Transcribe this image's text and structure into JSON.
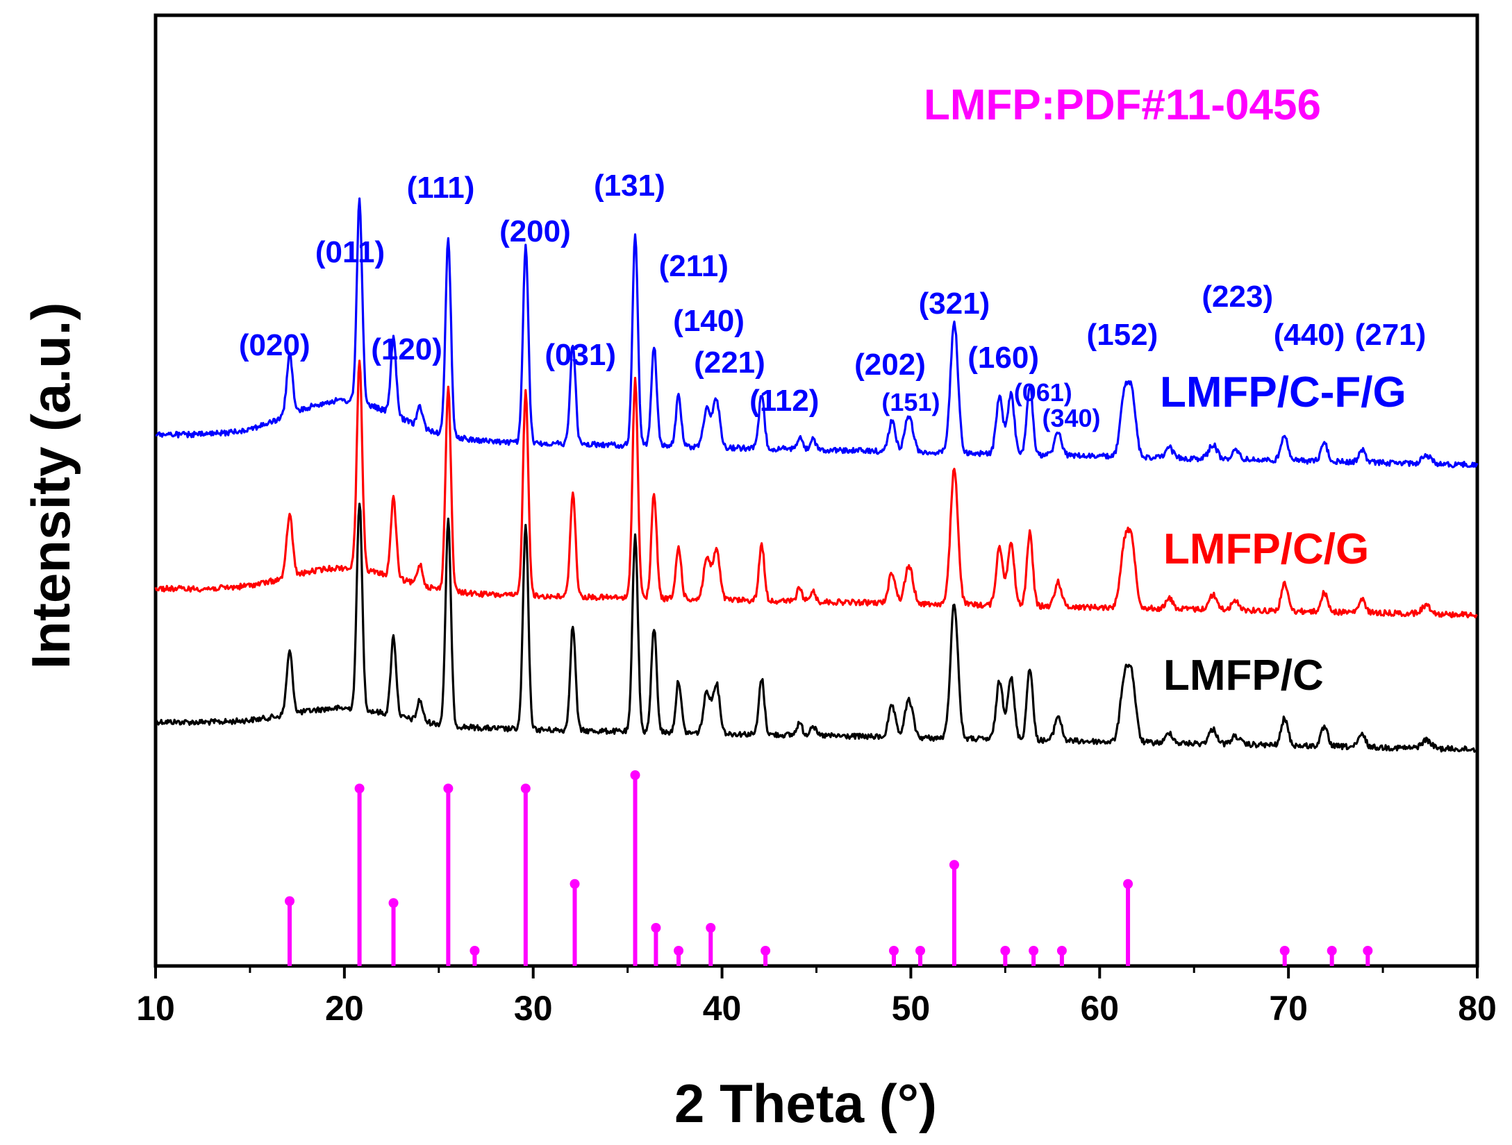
{
  "chart_data": {
    "type": "line",
    "title": "",
    "xlabel": "2 Theta (°)",
    "ylabel": "Intensity (a.u.)",
    "xlim": [
      10,
      80
    ],
    "xticks": [
      "10",
      "20",
      "30",
      "40",
      "50",
      "60",
      "70",
      "80"
    ],
    "yticks": [],
    "reference": {
      "label": "LMFP:PDF#11-0456",
      "color": "#ff00ff",
      "peaks": [
        {
          "x": 17.1,
          "h": 0.34
        },
        {
          "x": 20.8,
          "h": 0.93
        },
        {
          "x": 22.6,
          "h": 0.33
        },
        {
          "x": 26.9,
          "h": 0.08
        },
        {
          "x": 25.5,
          "h": 0.93
        },
        {
          "x": 29.6,
          "h": 0.93
        },
        {
          "x": 32.2,
          "h": 0.43
        },
        {
          "x": 35.4,
          "h": 1.0
        },
        {
          "x": 36.5,
          "h": 0.2
        },
        {
          "x": 37.7,
          "h": 0.08
        },
        {
          "x": 39.4,
          "h": 0.2
        },
        {
          "x": 42.3,
          "h": 0.08
        },
        {
          "x": 49.1,
          "h": 0.08
        },
        {
          "x": 50.5,
          "h": 0.08
        },
        {
          "x": 52.3,
          "h": 0.53
        },
        {
          "x": 55.0,
          "h": 0.08
        },
        {
          "x": 56.5,
          "h": 0.08
        },
        {
          "x": 58.0,
          "h": 0.08
        },
        {
          "x": 61.5,
          "h": 0.43
        },
        {
          "x": 69.8,
          "h": 0.08
        },
        {
          "x": 72.3,
          "h": 0.08
        },
        {
          "x": 74.2,
          "h": 0.08
        }
      ]
    },
    "series": [
      {
        "name": "LMFP/C",
        "color": "#000000"
      },
      {
        "name": "LMFP/C/G",
        "color": "#ff0000"
      },
      {
        "name": "LMFP/C-F/G",
        "color": "#0000ff"
      }
    ],
    "pattern_peaks": [
      {
        "x": 17.1,
        "h": 0.3,
        "w": 0.22
      },
      {
        "x": 20.8,
        "h": 1.0,
        "w": 0.2
      },
      {
        "x": 22.6,
        "h": 0.38,
        "w": 0.2
      },
      {
        "x": 24.0,
        "h": 0.1,
        "w": 0.2
      },
      {
        "x": 25.5,
        "h": 0.98,
        "w": 0.2
      },
      {
        "x": 29.6,
        "h": 0.98,
        "w": 0.2
      },
      {
        "x": 32.1,
        "h": 0.5,
        "w": 0.2
      },
      {
        "x": 35.4,
        "h": 1.05,
        "w": 0.2
      },
      {
        "x": 36.4,
        "h": 0.5,
        "w": 0.2
      },
      {
        "x": 37.7,
        "h": 0.25,
        "w": 0.2
      },
      {
        "x": 39.2,
        "h": 0.2,
        "w": 0.25
      },
      {
        "x": 39.7,
        "h": 0.24,
        "w": 0.25
      },
      {
        "x": 42.1,
        "h": 0.27,
        "w": 0.2
      },
      {
        "x": 44.1,
        "h": 0.06,
        "w": 0.2
      },
      {
        "x": 44.8,
        "h": 0.05,
        "w": 0.2
      },
      {
        "x": 49.0,
        "h": 0.15,
        "w": 0.25
      },
      {
        "x": 49.9,
        "h": 0.18,
        "w": 0.3
      },
      {
        "x": 52.3,
        "h": 0.65,
        "w": 0.28
      },
      {
        "x": 54.7,
        "h": 0.28,
        "w": 0.25
      },
      {
        "x": 55.3,
        "h": 0.3,
        "w": 0.25
      },
      {
        "x": 56.3,
        "h": 0.35,
        "w": 0.22
      },
      {
        "x": 57.8,
        "h": 0.12,
        "w": 0.25
      },
      {
        "x": 61.3,
        "h": 0.28,
        "w": 0.3
      },
      {
        "x": 61.7,
        "h": 0.3,
        "w": 0.3
      },
      {
        "x": 63.7,
        "h": 0.05,
        "w": 0.25
      },
      {
        "x": 66.0,
        "h": 0.07,
        "w": 0.3
      },
      {
        "x": 67.2,
        "h": 0.04,
        "w": 0.3
      },
      {
        "x": 69.8,
        "h": 0.13,
        "w": 0.25
      },
      {
        "x": 71.9,
        "h": 0.09,
        "w": 0.25
      },
      {
        "x": 73.9,
        "h": 0.06,
        "w": 0.25
      },
      {
        "x": 77.3,
        "h": 0.04,
        "w": 0.35
      }
    ],
    "miller_indices": [
      {
        "text": "(020)",
        "x": 16.3
      },
      {
        "text": "(011)",
        "x": 20.3
      },
      {
        "text": "(120)",
        "x": 23.3
      },
      {
        "text": "(111)",
        "x": 25.1
      },
      {
        "text": "(200)",
        "x": 30.1
      },
      {
        "text": "(031)",
        "x": 32.5
      },
      {
        "text": "(131)",
        "x": 35.1
      },
      {
        "text": "(211)",
        "x": 38.5
      },
      {
        "text": "(140)",
        "x": 39.3
      },
      {
        "text": "(221)",
        "x": 40.4
      },
      {
        "text": "(112)",
        "x": 43.3
      },
      {
        "text": "(202)",
        "x": 48.9
      },
      {
        "text": "(151)",
        "x": 50.0
      },
      {
        "text": "(321)",
        "x": 52.3
      },
      {
        "text": "(160)",
        "x": 54.9
      },
      {
        "text": "(061)",
        "x": 57.0
      },
      {
        "text": "(340)",
        "x": 58.5
      },
      {
        "text": "(152)",
        "x": 61.2
      },
      {
        "text": "(223)",
        "x": 67.3
      },
      {
        "text": "(440)",
        "x": 71.1
      },
      {
        "text": "(271)",
        "x": 75.4
      }
    ]
  }
}
